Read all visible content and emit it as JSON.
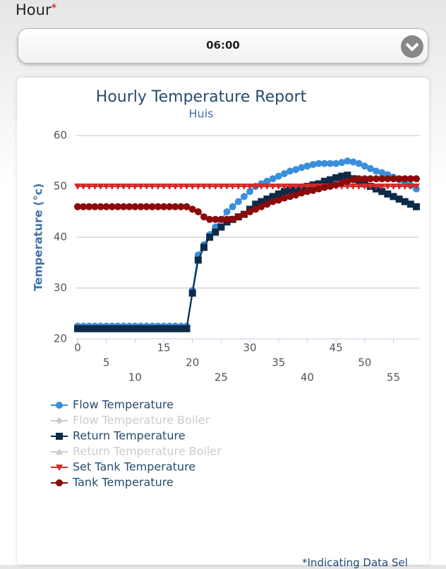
{
  "form": {
    "label": "Hour",
    "required_mark": "*",
    "selected": "06:00"
  },
  "footnote": "*Indicating Data Sel",
  "chart_data": {
    "type": "line",
    "title": "Hourly Temperature Report",
    "subtitle": "Huis",
    "y_label": "Temperature (°c)",
    "x": [
      0,
      1,
      2,
      3,
      4,
      5,
      6,
      7,
      8,
      9,
      10,
      11,
      12,
      13,
      14,
      15,
      16,
      17,
      18,
      19,
      20,
      21,
      22,
      23,
      24,
      25,
      26,
      27,
      28,
      29,
      30,
      31,
      32,
      33,
      34,
      35,
      36,
      37,
      38,
      39,
      40,
      41,
      42,
      43,
      44,
      45,
      46,
      47,
      48,
      49,
      50,
      51,
      52,
      53,
      54,
      55,
      56,
      57,
      58,
      59
    ],
    "xlim": [
      0,
      59
    ],
    "xticks": [
      0,
      5,
      10,
      15,
      20,
      25,
      30,
      35,
      40,
      45,
      50,
      55
    ],
    "ylim": [
      20,
      60
    ],
    "yticks": [
      20,
      30,
      40,
      50,
      60
    ],
    "grid": true,
    "series": [
      {
        "name": "Flow Temperature",
        "color": "#3a8fdc",
        "marker": "circle",
        "visible": true,
        "values": [
          22.5,
          22.5,
          22.5,
          22.5,
          22.5,
          22.5,
          22.5,
          22.5,
          22.5,
          22.5,
          22.5,
          22.5,
          22.5,
          22.5,
          22.5,
          22.5,
          22.5,
          22.5,
          22.5,
          22.5,
          29.5,
          36.5,
          38.5,
          40.5,
          42,
          43.5,
          45,
          46,
          47,
          48,
          49,
          50,
          50.5,
          51,
          51.5,
          52,
          52.5,
          53,
          53.3,
          53.7,
          54,
          54.3,
          54.5,
          54.5,
          54.5,
          54.5,
          54.7,
          55,
          54.8,
          54.5,
          54,
          53.5,
          53,
          52.7,
          52.3,
          51.8,
          51.3,
          50.8,
          50.2,
          49.5
        ]
      },
      {
        "name": "Flow Temperature Boiler",
        "color": "#cccccc",
        "marker": "diamond",
        "visible": false
      },
      {
        "name": "Return Temperature",
        "color": "#0d2b48",
        "marker": "square",
        "visible": true,
        "values": [
          22,
          22,
          22,
          22,
          22,
          22,
          22,
          22,
          22,
          22,
          22,
          22,
          22,
          22,
          22,
          22,
          22,
          22,
          22,
          22,
          29,
          35.5,
          38,
          40,
          41,
          42,
          43,
          43.5,
          44,
          44.5,
          45.5,
          46.5,
          47,
          47.5,
          48,
          48.5,
          49,
          49.3,
          49.5,
          49.7,
          50,
          50.3,
          50.5,
          51,
          51.3,
          51.7,
          52,
          52.2,
          51.5,
          51,
          50.5,
          50,
          49.5,
          49,
          48.5,
          48,
          47.5,
          47,
          46.5,
          46
        ]
      },
      {
        "name": "Return Temperature Boiler",
        "color": "#cccccc",
        "marker": "triangle",
        "visible": false
      },
      {
        "name": "Set Tank Temperature",
        "color": "#d42a2a",
        "marker": "triangle-down",
        "visible": true,
        "values": [
          50,
          50,
          50,
          50,
          50,
          50,
          50,
          50,
          50,
          50,
          50,
          50,
          50,
          50,
          50,
          50,
          50,
          50,
          50,
          50,
          50,
          50,
          50,
          50,
          50,
          50,
          50,
          50,
          50,
          50,
          50,
          50,
          50,
          50,
          50,
          50,
          50,
          50,
          50,
          50,
          50,
          50,
          50,
          50,
          50,
          50,
          50,
          50,
          50,
          50,
          50,
          50,
          50,
          50,
          50,
          50,
          50,
          50,
          50,
          50
        ]
      },
      {
        "name": "Tank Temperature",
        "color": "#8b0a0a",
        "marker": "circle",
        "visible": true,
        "values": [
          46,
          46,
          46,
          46,
          46,
          46,
          46,
          46,
          46,
          46,
          46,
          46,
          46,
          46,
          46,
          46,
          46,
          46,
          46,
          46,
          45.5,
          45,
          44,
          43.5,
          43.5,
          43.5,
          43.5,
          43.5,
          44,
          44.5,
          45,
          45.5,
          46,
          46.5,
          47,
          47.3,
          47.7,
          48,
          48.3,
          48.7,
          49,
          49.2,
          49.5,
          49.8,
          50,
          50.3,
          50.7,
          51,
          51.3,
          51.5,
          51.5,
          51.5,
          51.5,
          51.5,
          51.5,
          51.5,
          51.5,
          51.5,
          51.5,
          51.5
        ]
      }
    ]
  }
}
